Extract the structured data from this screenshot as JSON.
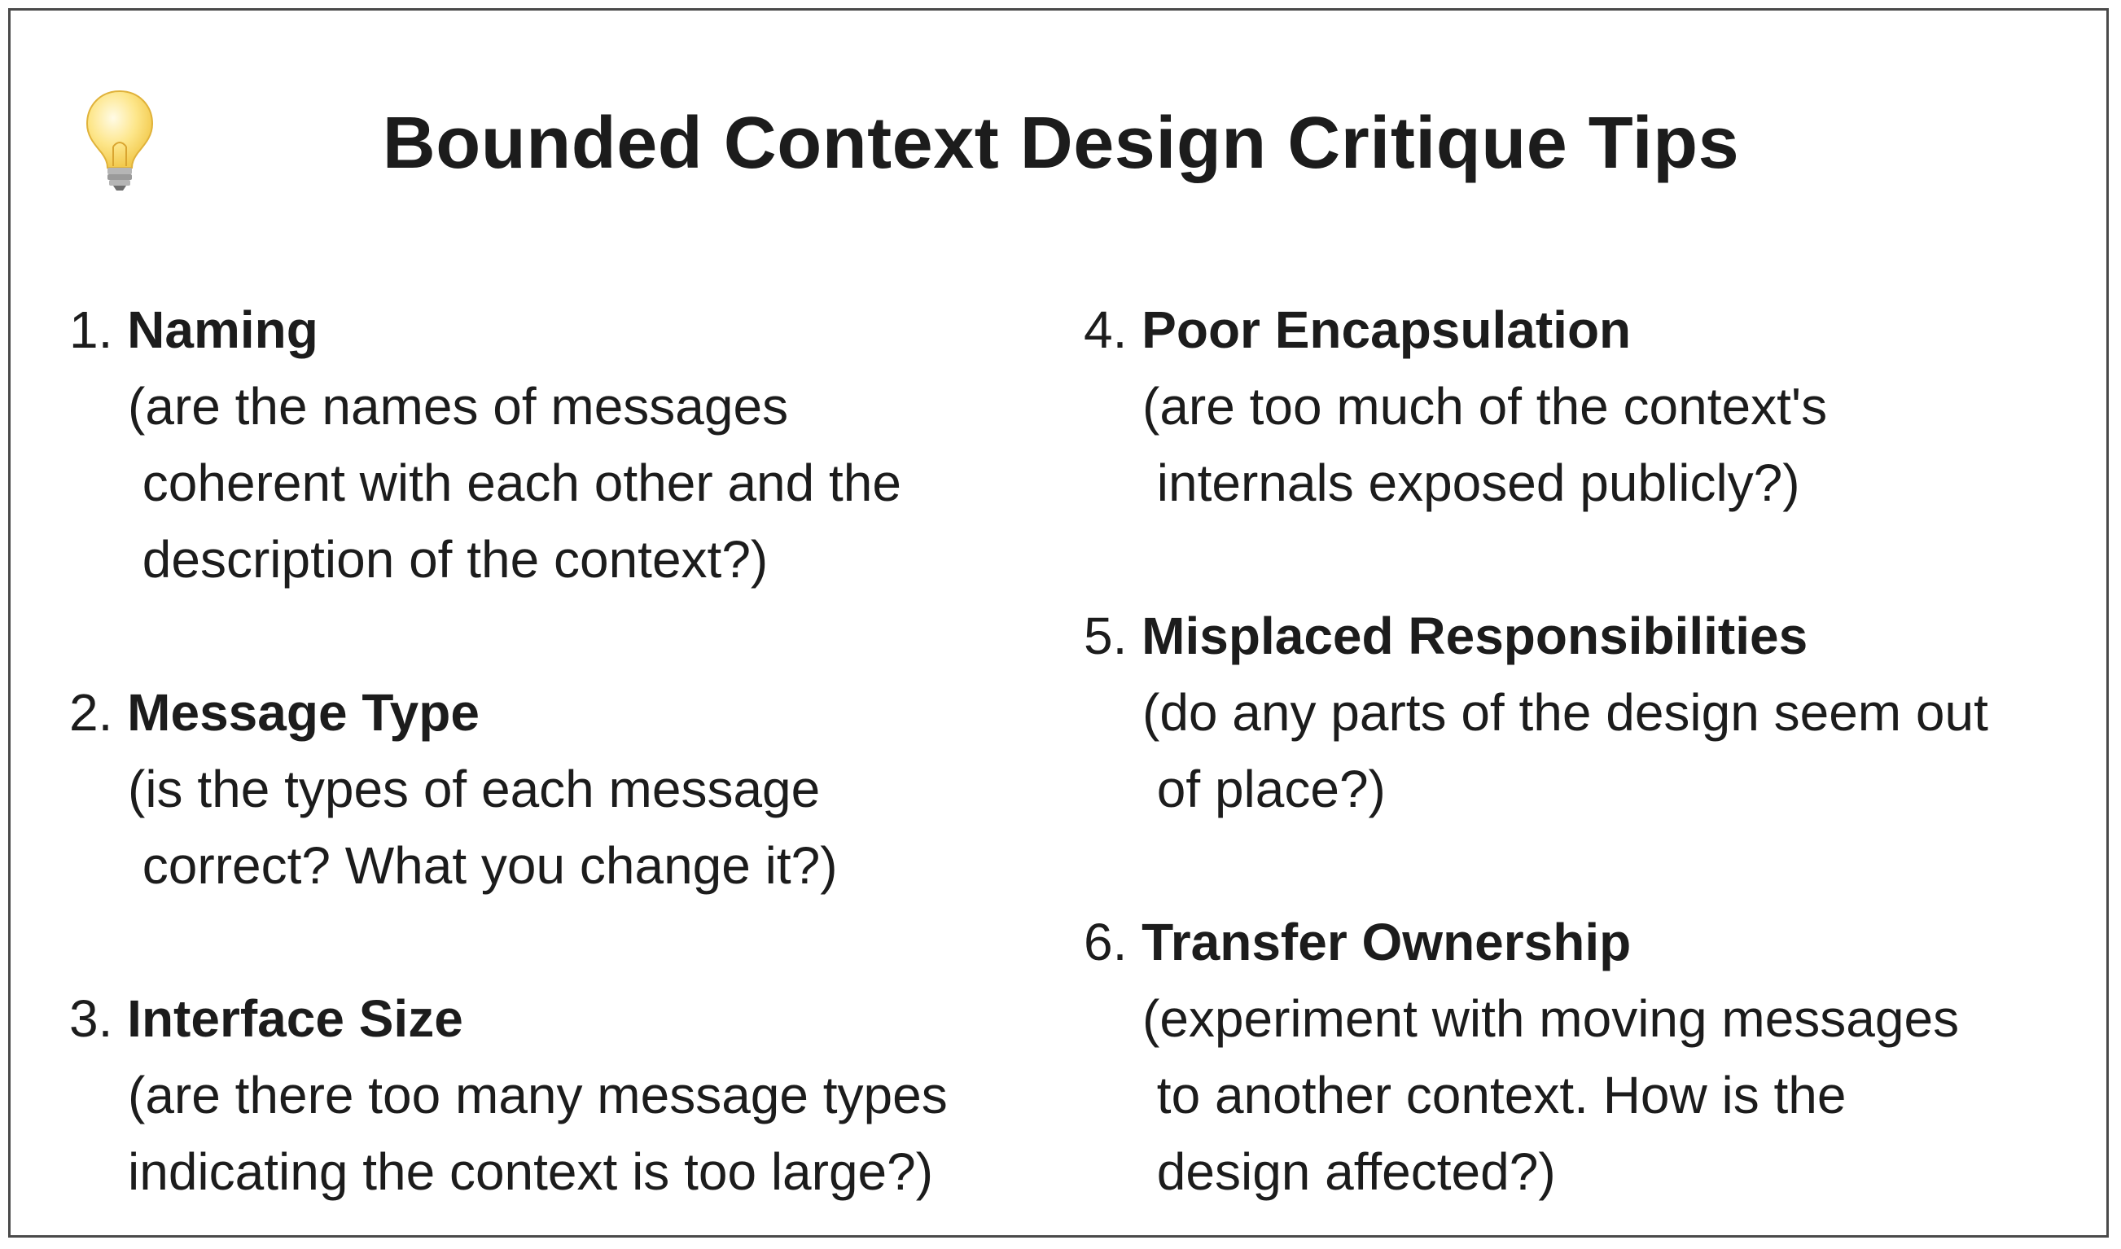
{
  "header": {
    "icon": "lightbulb-icon",
    "title": "Bounded Context Design Critique Tips"
  },
  "tips": [
    {
      "number": "1.",
      "name": "Naming",
      "description": "(are the names of messages\n coherent with each other and the\n description of the context?)"
    },
    {
      "number": "2.",
      "name": "Message Type",
      "description": "(is the types of each message\n correct? What you change it?)"
    },
    {
      "number": "3.",
      "name": "Interface Size",
      "description": "(are there too many message types\nindicating the context is too large?)"
    },
    {
      "number": "4.",
      "name": "Poor Encapsulation",
      "description": "(are too much of the context's\n internals exposed publicly?)"
    },
    {
      "number": "5.",
      "name": "Misplaced Responsibilities",
      "description": "(do any parts of the design seem out\n of place?)"
    },
    {
      "number": "6.",
      "name": "Transfer Ownership",
      "description": "(experiment with moving messages\n to another context. How is the\n design affected?)"
    }
  ],
  "colors": {
    "text": "#1c1c1c",
    "border": "#4a4a4a",
    "bulb_glass": "#fde68a",
    "bulb_base": "#9a9a9a"
  }
}
